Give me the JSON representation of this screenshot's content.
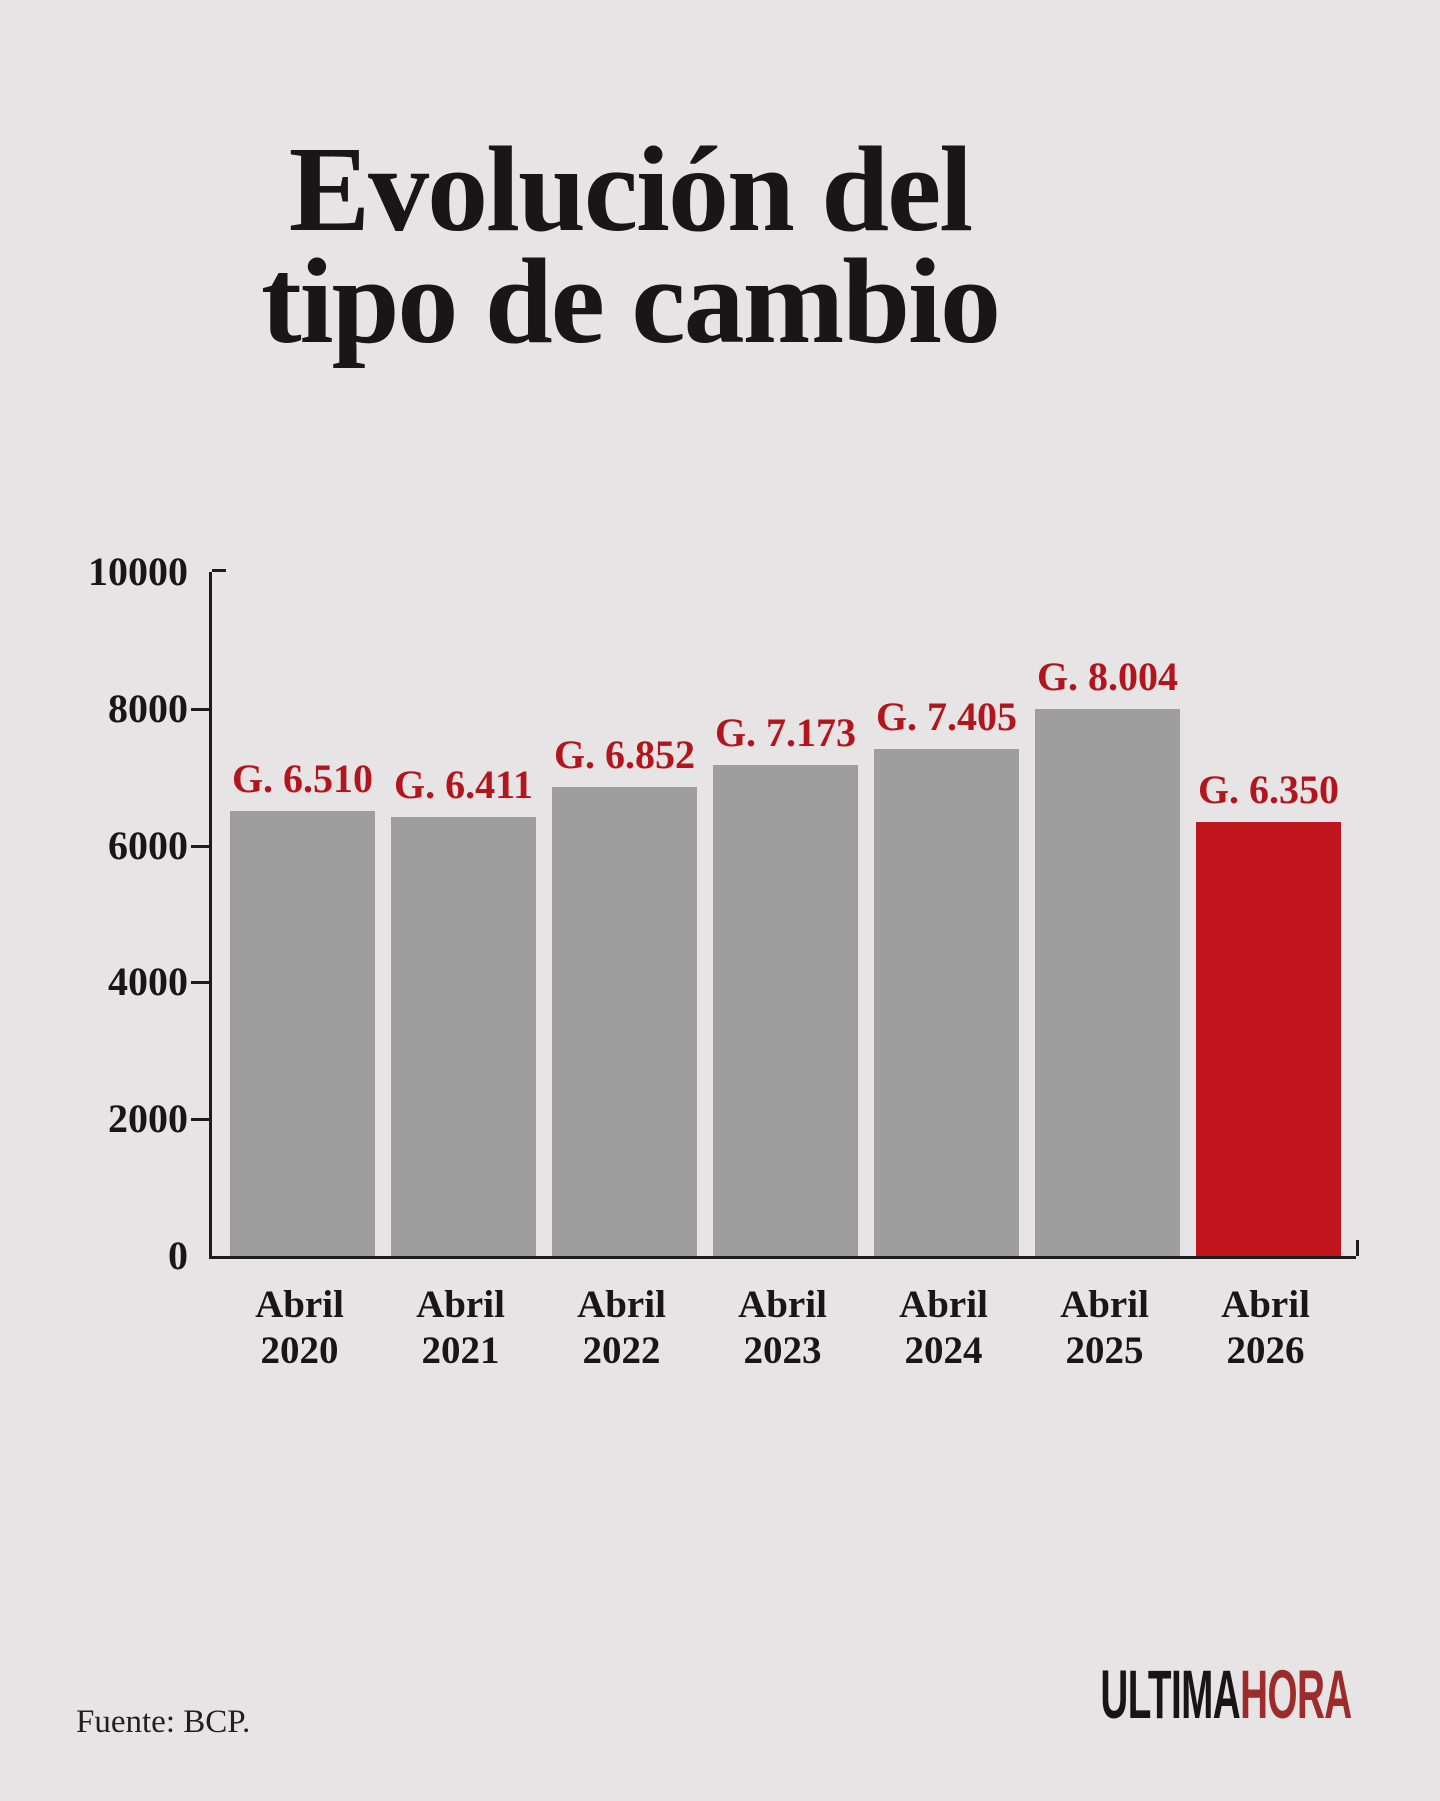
{
  "page": {
    "background_color": "#e6e4e5",
    "text_color": "#1a1617"
  },
  "title": {
    "lines": [
      "Evolución del",
      "tipo de cambio"
    ]
  },
  "chart_data": {
    "type": "bar",
    "title": "Evolución del tipo de cambio",
    "categories": [
      "Abril 2020",
      "Abril 2021",
      "Abril 2022",
      "Abril 2023",
      "Abril 2024",
      "Abril 2025",
      "Abril 2026"
    ],
    "values": [
      6510,
      6411,
      6852,
      7173,
      7405,
      8004,
      6350
    ],
    "value_labels": [
      "G. 6.510",
      "G. 6.411",
      "G. 6.852",
      "G. 7.173",
      "G. 7.405",
      "G. 8.004",
      "G. 6.350"
    ],
    "xlabel": "",
    "ylabel": "",
    "ylim": [
      0,
      10000
    ],
    "yticks": [
      0,
      2000,
      4000,
      6000,
      8000,
      10000
    ],
    "grid": false,
    "legend": false,
    "axis_color": "#1c1c1c",
    "label_color": "#b2161c",
    "bar_colors": {
      "default": "#9f9e9e",
      "highlight": "#c0151c"
    },
    "highlight_index": 6
  },
  "footer": {
    "source": "Fuente: BCP.",
    "logo": {
      "part1": "ULTIMA",
      "part2": "HORA",
      "part1_color": "#191516",
      "part2_color": "#9e2b2b"
    }
  }
}
